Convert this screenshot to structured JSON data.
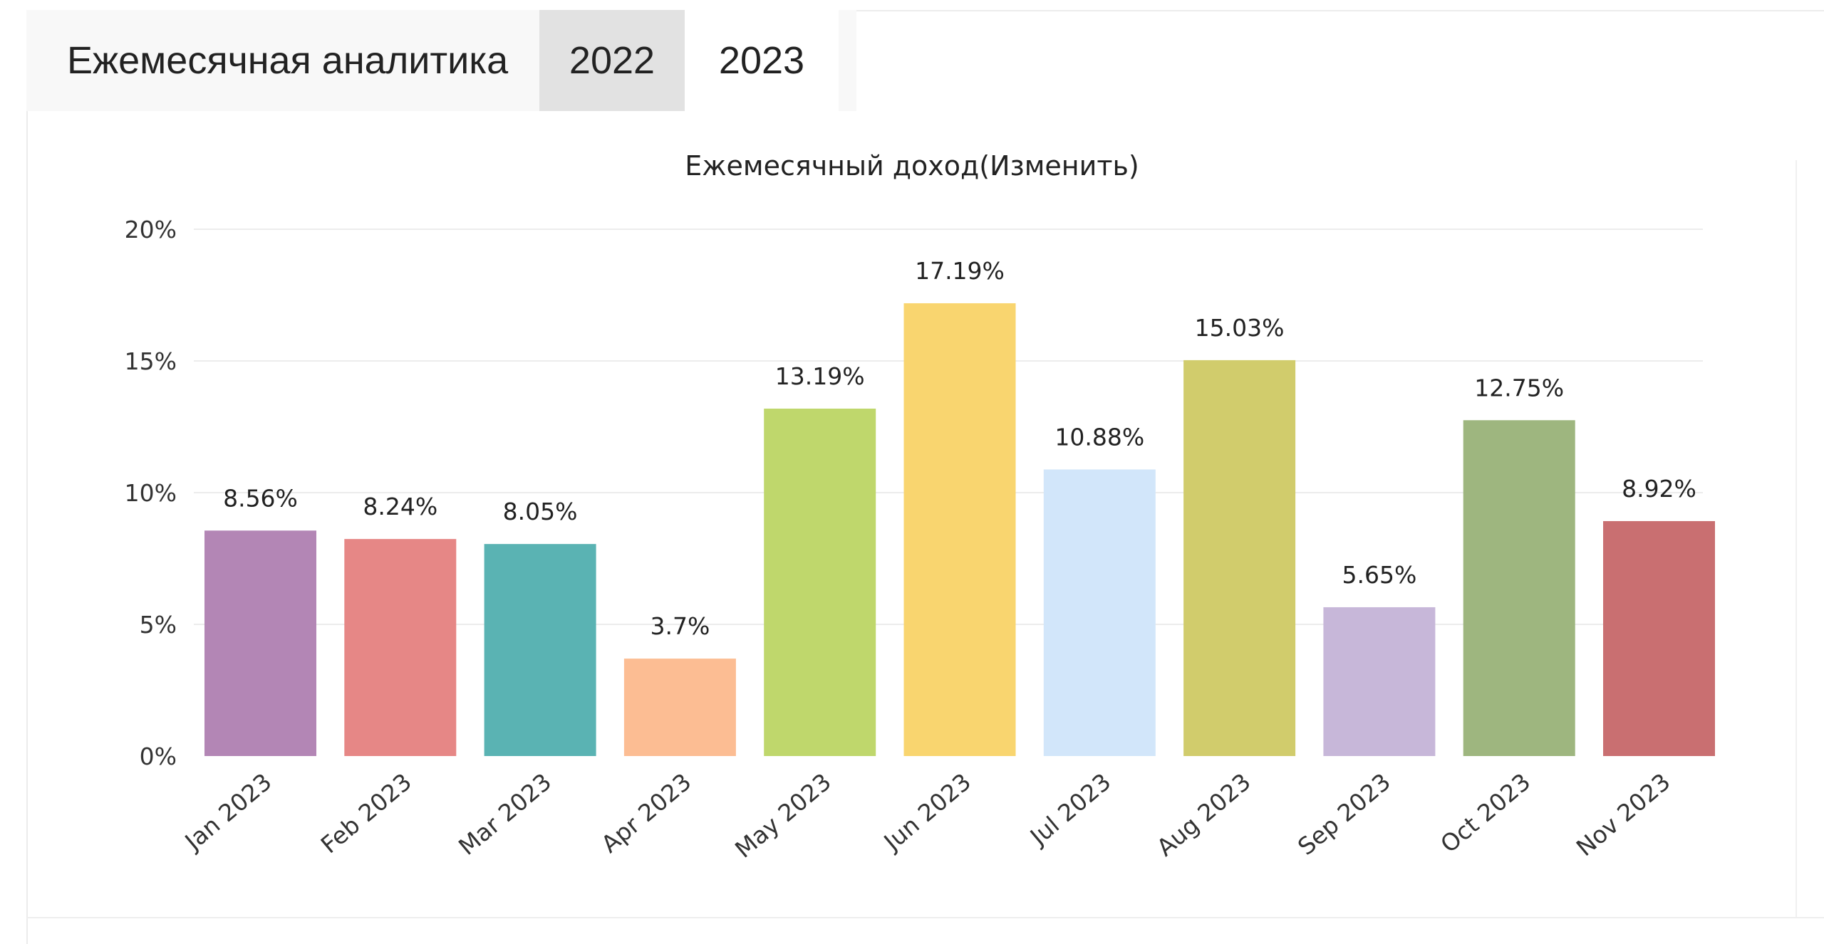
{
  "header": {
    "title": "Ежемесячная аналитика",
    "tabs": [
      {
        "label": "2022",
        "active": true
      },
      {
        "label": "2023",
        "active": false
      }
    ]
  },
  "chart_data": {
    "type": "bar",
    "title": "Ежемесячный доход(Изменить)",
    "xlabel": "",
    "ylabel": "",
    "ylim": [
      0,
      20
    ],
    "y_ticks": [
      "0%",
      "5%",
      "10%",
      "15%",
      "20%"
    ],
    "y_tick_values": [
      0,
      5,
      10,
      15,
      20
    ],
    "grid": true,
    "categories": [
      "Jan 2023",
      "Feb 2023",
      "Mar 2023",
      "Apr 2023",
      "May 2023",
      "Jun 2023",
      "Jul 2023",
      "Aug 2023",
      "Sep 2023",
      "Oct 2023",
      "Nov 2023"
    ],
    "values": [
      8.56,
      8.24,
      8.05,
      3.7,
      13.19,
      17.19,
      10.88,
      15.03,
      5.65,
      12.75,
      8.92
    ],
    "value_labels": [
      "8.56%",
      "8.24%",
      "8.05%",
      "3.7%",
      "13.19%",
      "17.19%",
      "10.88%",
      "15.03%",
      "5.65%",
      "12.75%",
      "8.92%"
    ],
    "colors": [
      "#b386b5",
      "#e68786",
      "#5ab3b3",
      "#fcbd93",
      "#bfd76c",
      "#f9d56f",
      "#d2e6fa",
      "#d1cc6c",
      "#c7b7d9",
      "#9eb67f",
      "#c96f71"
    ]
  }
}
